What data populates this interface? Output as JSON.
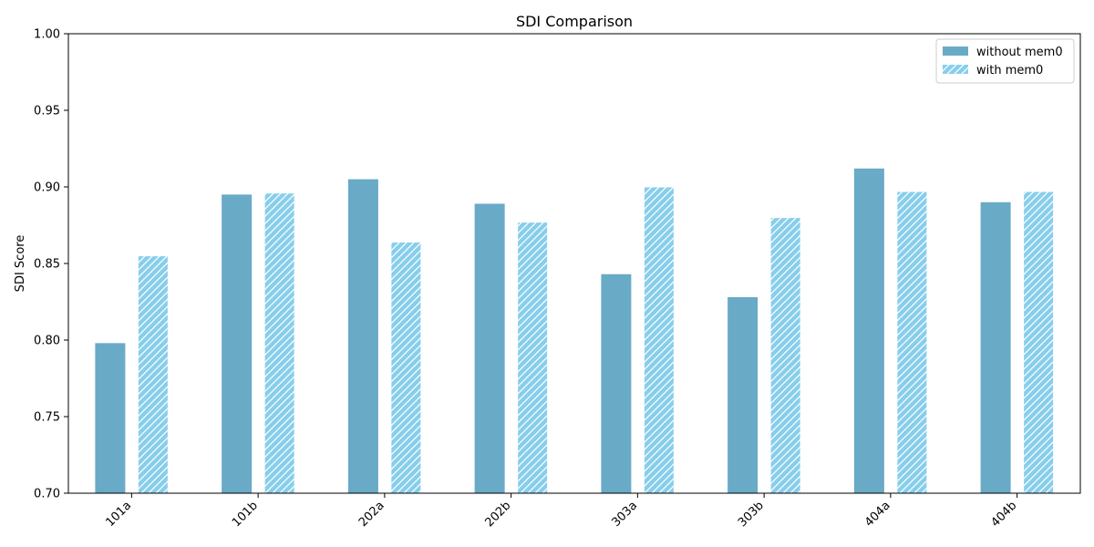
{
  "chart_data": {
    "type": "bar",
    "title": "SDI Comparison",
    "xlabel": "",
    "ylabel": "SDI Score",
    "categories": [
      "101a",
      "101b",
      "202a",
      "202b",
      "303a",
      "303b",
      "404a",
      "404b"
    ],
    "series": [
      {
        "name": "without mem0",
        "color": "#69aac7",
        "pattern": "solid",
        "values": [
          0.798,
          0.895,
          0.905,
          0.889,
          0.843,
          0.828,
          0.912,
          0.89
        ]
      },
      {
        "name": "with mem0",
        "color": "#87ceeb",
        "pattern": "hatched",
        "values": [
          0.855,
          0.896,
          0.864,
          0.877,
          0.9,
          0.88,
          0.897,
          0.897
        ]
      }
    ],
    "ylim": [
      0.7,
      1.0
    ],
    "yticks": [
      "0.70",
      "0.75",
      "0.80",
      "0.85",
      "0.90",
      "0.95",
      "1.00"
    ],
    "grid": false,
    "legend_position": "top-right"
  }
}
